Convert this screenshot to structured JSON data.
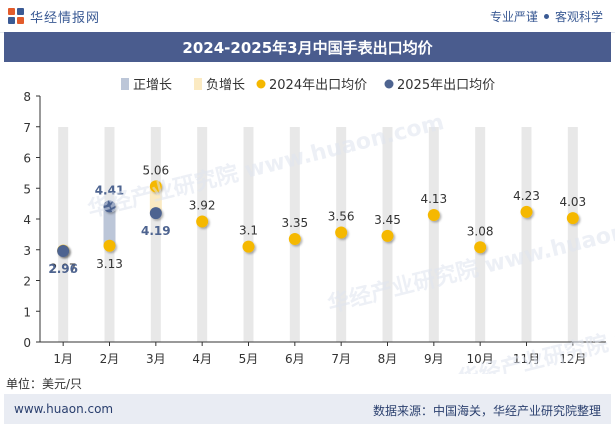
{
  "header": {
    "brand_name": "华经情报网",
    "slogan_left": "专业严谨",
    "slogan_right": "客观科学"
  },
  "chart_data": {
    "type": "line",
    "title": "2024-2025年3月中国手表出口均价",
    "categories": [
      "1月",
      "2月",
      "3月",
      "4月",
      "5月",
      "6月",
      "7月",
      "8月",
      "9月",
      "10月",
      "11月",
      "12月"
    ],
    "ylim": [
      0,
      8
    ],
    "yticks": [
      0,
      1,
      2,
      3,
      4,
      5,
      6,
      7,
      8
    ],
    "grid": false,
    "legend_position": "top-center",
    "legend": [
      {
        "label": "正增长",
        "kind": "bar",
        "color": "#bcc6d8"
      },
      {
        "label": "负增长",
        "kind": "bar",
        "color": "#fbeac2"
      },
      {
        "label": "2024年出口均价",
        "kind": "dot",
        "color": "#f5b800"
      },
      {
        "label": "2025年出口均价",
        "kind": "dot",
        "color": "#4e6490"
      }
    ],
    "series": [
      {
        "name": "2024年出口均价",
        "color": "#f5b800",
        "values": [
          2.97,
          3.13,
          5.06,
          3.92,
          3.1,
          3.35,
          3.56,
          3.45,
          4.13,
          3.08,
          4.23,
          4.03
        ]
      },
      {
        "name": "2025年出口均价",
        "color": "#4e6490",
        "values": [
          2.96,
          4.41,
          4.19,
          null,
          null,
          null,
          null,
          null,
          null,
          null,
          null,
          null
        ]
      }
    ],
    "change_bars": [
      {
        "category": "1月",
        "from": 2.97,
        "to": 2.96,
        "direction": "负增长"
      },
      {
        "category": "2月",
        "from": 3.13,
        "to": 4.41,
        "direction": "正增长"
      },
      {
        "category": "3月",
        "from": 5.06,
        "to": 4.19,
        "direction": "负增长"
      }
    ],
    "unit_label": "单位：美元/只"
  },
  "footer": {
    "website": "www.huaon.com",
    "source": "数据来源：中国海关，华经产业研究院整理"
  },
  "colors": {
    "title_bg": "#4a5c8e",
    "column_bg": "#e8e8e8",
    "footer_bg": "#e9ecf3"
  },
  "watermark": "华经产业研究院 www.huaon.com"
}
